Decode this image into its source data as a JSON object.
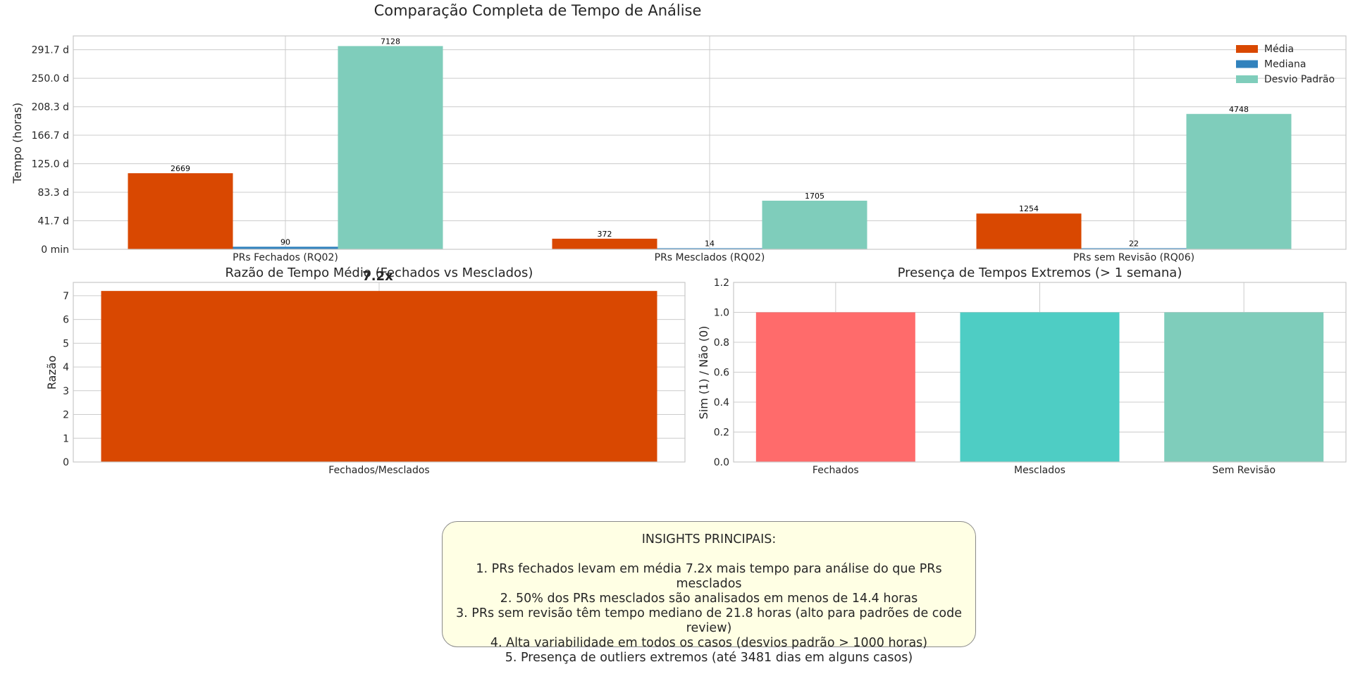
{
  "figure": {
    "suptitle": "Comparação Completa de Tempo de Análise"
  },
  "chart_data": [
    {
      "type": "bar",
      "title": "",
      "xlabel": "",
      "ylabel": "Tempo (horas)",
      "categories": [
        "PRs Fechados (RQ02)",
        "PRs Mesclados (RQ02)",
        "PRs sem Revisão (RQ06)"
      ],
      "series": [
        {
          "name": "Média",
          "values": [
            2669,
            372,
            1254
          ],
          "color": "#d94801"
        },
        {
          "name": "Mediana",
          "values": [
            90,
            14,
            22
          ],
          "color": "#3182bd"
        },
        {
          "name": "Desvio Padrão",
          "values": [
            7128,
            1705,
            4748
          ],
          "color": "#7fcdbb"
        }
      ],
      "value_labels": [
        "2669",
        "90",
        "7128",
        "372",
        "14",
        "1705",
        "1254",
        "22",
        "4748"
      ],
      "y_ticks": [
        0,
        1000,
        2000,
        3000,
        4000,
        5000,
        6000,
        7000
      ],
      "y_tick_labels": [
        "0 min",
        "41.7 d",
        "83.3 d",
        "125.0 d",
        "166.7 d",
        "208.3 d",
        "250.0 d",
        "291.7 d"
      ],
      "ylim": [
        0,
        7484
      ],
      "grid": true,
      "legend": "top-right"
    },
    {
      "type": "bar",
      "title": "Razão de Tempo Médio (Fechados vs Mesclados)",
      "xlabel": "",
      "ylabel": "Razão",
      "categories": [
        "Fechados/Mesclados"
      ],
      "values": [
        7.2
      ],
      "value_labels": [
        "7.2x"
      ],
      "color": "#d94801",
      "y_ticks": [
        0,
        1,
        2,
        3,
        4,
        5,
        6,
        7
      ],
      "y_tick_labels": [
        "0",
        "1",
        "2",
        "3",
        "4",
        "5",
        "6",
        "7"
      ],
      "ylim": [
        0,
        7.56
      ],
      "grid": true
    },
    {
      "type": "bar",
      "title": "Presença de Tempos Extremos (> 1 semana)",
      "xlabel": "",
      "ylabel": "Sim (1) / Não (0)",
      "categories": [
        "Fechados",
        "Mesclados",
        "Sem Revisão"
      ],
      "values": [
        1,
        1,
        1
      ],
      "colors": [
        "#ff6b6b",
        "#4ecdc4",
        "#7fcdbb"
      ],
      "y_ticks": [
        0,
        0.2,
        0.4,
        0.6,
        0.8,
        1.0,
        1.2
      ],
      "y_tick_labels": [
        "0.0",
        "0.2",
        "0.4",
        "0.6",
        "0.8",
        "1.0",
        "1.2"
      ],
      "ylim": [
        0,
        1.2
      ],
      "grid": true
    }
  ],
  "insights": {
    "title": "INSIGHTS PRINCIPAIS:",
    "lines": [
      "1. PRs fechados levam em média 7.2x mais tempo para análise do que PRs mesclados",
      "2. 50% dos PRs mesclados são analisados em menos de 14.4 horas",
      "3. PRs sem revisão têm tempo mediano de 21.8 horas (alto para padrões de code review)",
      "4. Alta variabilidade em todos os casos (desvios padrão > 1000 horas)",
      "5. Presença de outliers extremos (até 3481 dias em alguns casos)"
    ]
  }
}
